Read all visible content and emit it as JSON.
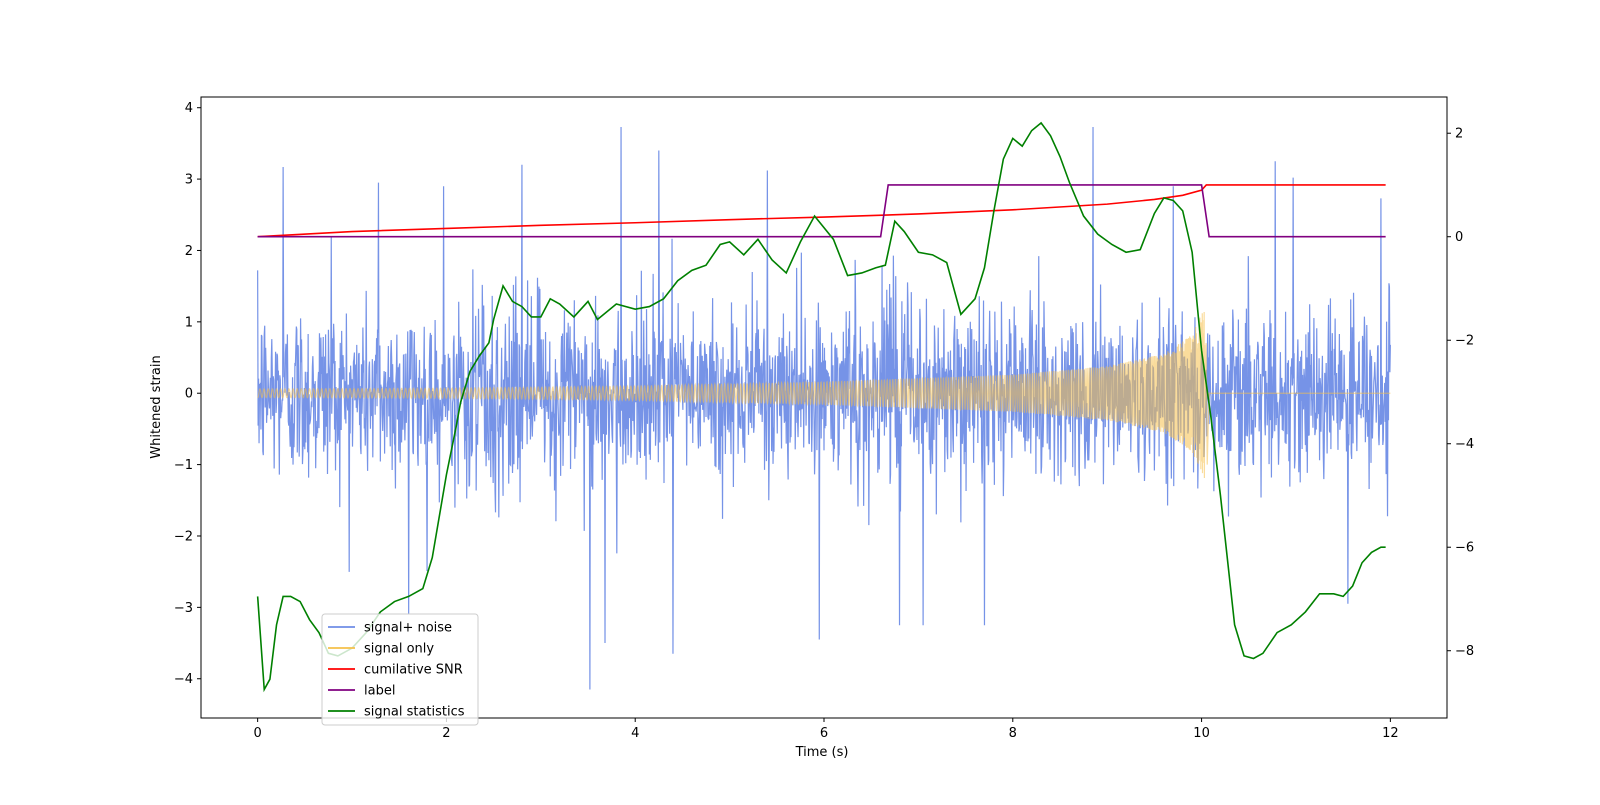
{
  "chart_data": {
    "type": "line",
    "xlabel": "Time (s)",
    "ylabel": "Whitened strain",
    "xlim": [
      -0.6,
      12.6
    ],
    "ylim_left": [
      -4.55,
      4.15
    ],
    "ylim_right": [
      -9.3,
      2.7
    ],
    "x_ticks": [
      "0",
      "2",
      "4",
      "6",
      "8",
      "10",
      "12"
    ],
    "y_ticks_left": [
      "−4",
      "−3",
      "−2",
      "−1",
      "0",
      "1",
      "2",
      "3",
      "4"
    ],
    "y_ticks_right": [
      "−8",
      "−6",
      "−4",
      "−2",
      "0",
      "2"
    ],
    "grid": false,
    "legend_position": "lower-left",
    "legend": [
      {
        "label": "signal+ noise",
        "color": "#6f8de6"
      },
      {
        "label": "signal only",
        "color": "#f5c04a"
      },
      {
        "label": "cumilative SNR",
        "color": "#ff0000"
      },
      {
        "label": "label",
        "color": "#800080"
      },
      {
        "label": "signal statistics",
        "color": "#008000"
      }
    ],
    "series": [
      {
        "name": "signal+ noise",
        "axis": "left",
        "color": "#6f8de6",
        "description_range": [
          -4.15,
          3.75
        ],
        "x_range": [
          0,
          12
        ],
        "noise_sigma": 0.62,
        "peaks": [
          [
            0.27,
            3.17
          ],
          [
            0.78,
            2.2
          ],
          [
            1.28,
            2.95
          ],
          [
            1.97,
            2.9
          ],
          [
            2.8,
            3.2
          ],
          [
            3.85,
            3.73
          ],
          [
            4.25,
            3.4
          ],
          [
            5.4,
            3.12
          ],
          [
            5.95,
            3.35
          ],
          [
            8.85,
            3.73
          ],
          [
            9.7,
            2.9
          ],
          [
            10.78,
            3.25
          ],
          [
            10.97,
            3.02
          ],
          [
            11.9,
            2.73
          ],
          [
            1.6,
            -3.1
          ],
          [
            3.52,
            -4.15
          ],
          [
            3.68,
            -3.5
          ],
          [
            4.4,
            -3.65
          ],
          [
            5.95,
            -3.45
          ],
          [
            6.8,
            -3.25
          ],
          [
            7.05,
            -3.25
          ],
          [
            7.7,
            -3.25
          ],
          [
            11.55,
            -2.95
          ]
        ]
      },
      {
        "name": "signal only",
        "axis": "left",
        "color": "#f5c04a",
        "x_range": [
          0,
          12
        ],
        "merger_time": 10.05,
        "envelope": [
          [
            0,
            0.06
          ],
          [
            2,
            0.07
          ],
          [
            4,
            0.1
          ],
          [
            6,
            0.16
          ],
          [
            8,
            0.26
          ],
          [
            9,
            0.38
          ],
          [
            9.6,
            0.55
          ],
          [
            9.9,
            0.82
          ],
          [
            10.03,
            1.2
          ],
          [
            10.05,
            -1.0
          ]
        ],
        "post_merger_value": 0.0
      },
      {
        "name": "cumilative SNR",
        "axis": "right",
        "color": "#ff0000",
        "x": [
          0,
          1,
          2,
          3,
          4,
          5,
          6,
          7,
          8,
          9,
          9.5,
          9.8,
          10.0,
          10.05,
          11.95
        ],
        "y": [
          0.0,
          0.1,
          0.16,
          0.22,
          0.27,
          0.33,
          0.38,
          0.44,
          0.52,
          0.63,
          0.72,
          0.8,
          0.9,
          1.0,
          1.0
        ]
      },
      {
        "name": "label",
        "axis": "right",
        "color": "#800080",
        "x": [
          0,
          6.6,
          6.68,
          10.0,
          10.08,
          11.95
        ],
        "y": [
          0,
          0,
          1,
          1,
          0,
          0
        ]
      },
      {
        "name": "signal statistics",
        "axis": "right",
        "color": "#008000",
        "x": [
          0,
          0.07,
          0.13,
          0.2,
          0.27,
          0.35,
          0.45,
          0.55,
          0.65,
          0.75,
          0.85,
          1.0,
          1.15,
          1.3,
          1.45,
          1.6,
          1.75,
          1.85,
          2.0,
          2.1,
          2.15,
          2.25,
          2.35,
          2.45,
          2.5,
          2.6,
          2.7,
          2.8,
          2.9,
          3.0,
          3.1,
          3.2,
          3.35,
          3.5,
          3.6,
          3.8,
          4.0,
          4.15,
          4.3,
          4.45,
          4.6,
          4.75,
          4.9,
          5.0,
          5.15,
          5.3,
          5.45,
          5.6,
          5.75,
          5.9,
          6.1,
          6.25,
          6.4,
          6.55,
          6.65,
          6.75,
          6.85,
          7.0,
          7.15,
          7.3,
          7.45,
          7.6,
          7.7,
          7.8,
          7.9,
          8.0,
          8.1,
          8.2,
          8.3,
          8.4,
          8.5,
          8.6,
          8.75,
          8.9,
          9.05,
          9.2,
          9.35,
          9.5,
          9.6,
          9.7,
          9.8,
          9.9,
          10.0,
          10.1,
          10.2,
          10.35,
          10.45,
          10.55,
          10.65,
          10.8,
          10.95,
          11.1,
          11.25,
          11.4,
          11.5,
          11.6,
          11.7,
          11.8,
          11.9,
          11.95
        ],
        "y": [
          -6.95,
          -8.75,
          -8.55,
          -7.5,
          -6.95,
          -6.95,
          -7.05,
          -7.4,
          -7.65,
          -8.05,
          -8.1,
          -7.95,
          -7.65,
          -7.25,
          -7.05,
          -6.95,
          -6.8,
          -6.2,
          -4.6,
          -3.7,
          -3.2,
          -2.6,
          -2.3,
          -2.05,
          -1.6,
          -0.95,
          -1.25,
          -1.35,
          -1.55,
          -1.55,
          -1.2,
          -1.3,
          -1.55,
          -1.25,
          -1.6,
          -1.3,
          -1.4,
          -1.35,
          -1.2,
          -0.85,
          -0.65,
          -0.55,
          -0.15,
          -0.1,
          -0.35,
          -0.05,
          -0.45,
          -0.7,
          -0.1,
          0.4,
          -0.05,
          -0.75,
          -0.7,
          -0.6,
          -0.55,
          0.3,
          0.1,
          -0.3,
          -0.35,
          -0.5,
          -1.5,
          -1.2,
          -0.6,
          0.5,
          1.5,
          1.9,
          1.75,
          2.05,
          2.2,
          1.95,
          1.55,
          1.05,
          0.4,
          0.05,
          -0.15,
          -0.3,
          -0.25,
          0.45,
          0.75,
          0.7,
          0.5,
          -0.3,
          -2.2,
          -3.5,
          -5.0,
          -7.5,
          -8.1,
          -8.15,
          -8.05,
          -7.65,
          -7.5,
          -7.25,
          -6.9,
          -6.9,
          -6.95,
          -6.75,
          -6.3,
          -6.1,
          -6.0,
          -6.0
        ]
      }
    ]
  }
}
